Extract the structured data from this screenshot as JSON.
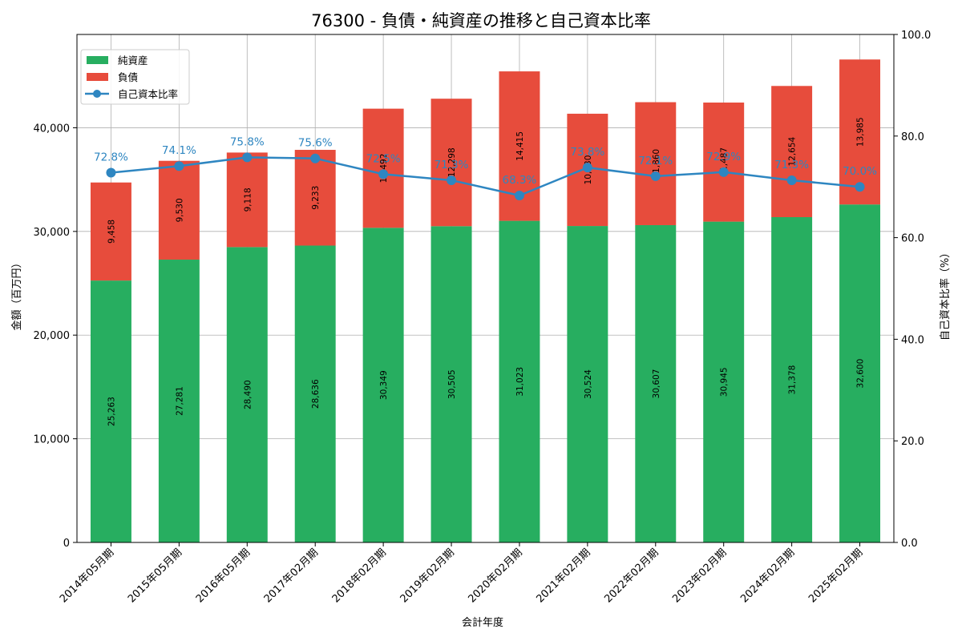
{
  "chart_data": {
    "type": "bar",
    "title": "76300 - 負債・純資産の推移と自己資本比率",
    "xlabel": "会計年度",
    "ylabel": "金額（百万円）",
    "y2label": "自己資本比率（%）",
    "ylim": [
      0,
      49000
    ],
    "y2lim": [
      0,
      100
    ],
    "yticks": [
      {
        "value": 0,
        "label": "0"
      },
      {
        "value": 10000,
        "label": "10,000"
      },
      {
        "value": 20000,
        "label": "20,000"
      },
      {
        "value": 30000,
        "label": "30,000"
      },
      {
        "value": 40000,
        "label": "40,000"
      }
    ],
    "y2ticks": [
      {
        "value": 0,
        "label": "0.0"
      },
      {
        "value": 20,
        "label": "20.0"
      },
      {
        "value": 40,
        "label": "40.0"
      },
      {
        "value": 60,
        "label": "60.0"
      },
      {
        "value": 80,
        "label": "80.0"
      },
      {
        "value": 100,
        "label": "100.0"
      }
    ],
    "categories": [
      "2014年05月期",
      "2015年05月期",
      "2016年05月期",
      "2017年02月期",
      "2018年02月期",
      "2019年02月期",
      "2020年02月期",
      "2021年02月期",
      "2022年02月期",
      "2023年02月期",
      "2024年02月期",
      "2025年02月期"
    ],
    "series": [
      {
        "name": "純資産",
        "kind": "bar",
        "color": "#27ae60",
        "values": [
          25263,
          27281,
          28490,
          28636,
          30349,
          30505,
          31023,
          30524,
          30607,
          30945,
          31378,
          32600
        ],
        "labels": [
          "25,263",
          "27,281",
          "28,490",
          "28,636",
          "30,349",
          "30,505",
          "31,023",
          "30,524",
          "30,607",
          "30,945",
          "31,378",
          "32,600"
        ]
      },
      {
        "name": "負債",
        "kind": "bar",
        "color": "#e74c3c",
        "values": [
          9458,
          9530,
          9118,
          9233,
          11492,
          12298,
          14415,
          10830,
          11860,
          11487,
          12654,
          13985
        ],
        "labels": [
          "9,458",
          "9,530",
          "9,118",
          "9,233",
          "11,492",
          "12,298",
          "14,415",
          "10,830",
          "11,860",
          "11,487",
          "12,654",
          "13,985"
        ]
      },
      {
        "name": "自己資本比率",
        "kind": "line",
        "axis": "right",
        "color": "#2e86c1",
        "values": [
          72.8,
          74.1,
          75.8,
          75.6,
          72.5,
          71.3,
          68.3,
          73.8,
          72.1,
          72.9,
          71.3,
          70.0
        ],
        "labels": [
          "72.8%",
          "74.1%",
          "75.8%",
          "75.6%",
          "72.5%",
          "71.3%",
          "68.3%",
          "73.8%",
          "72.1%",
          "72.9%",
          "71.3%",
          "70.0%"
        ]
      }
    ],
    "legend": {
      "position": "top-left",
      "items": [
        "純資産",
        "負債",
        "自己資本比率"
      ]
    },
    "grid": true
  }
}
